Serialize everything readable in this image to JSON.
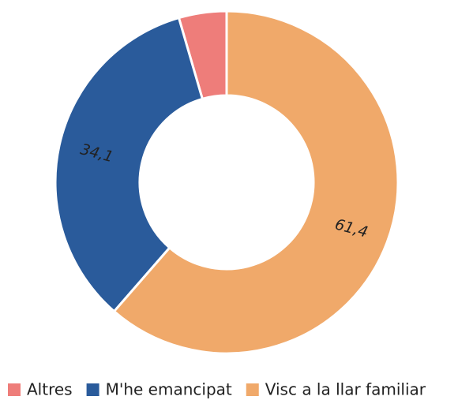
{
  "chart_data": {
    "type": "pie",
    "donut": true,
    "categories": [
      "Altres",
      "M'he emancipat",
      "Visc a la llar familiar"
    ],
    "values": [
      4.5,
      34.1,
      61.4
    ],
    "value_labels": [
      null,
      "34,1",
      "61,4"
    ],
    "colors": [
      "#ee7d7a",
      "#2a5b9b",
      "#f0a96a"
    ],
    "legend": "bottom"
  }
}
